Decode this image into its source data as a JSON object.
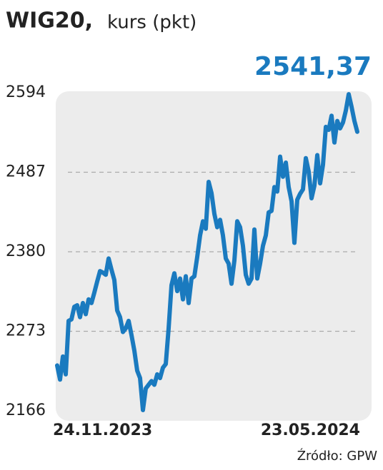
{
  "chart_data": {
    "type": "line",
    "title": "WIG20,",
    "subtitle": "kurs (pkt)",
    "annotation": "2541,37",
    "source": "Źródło: GPW",
    "color": "#1a7abf",
    "ylim": [
      2166,
      2594
    ],
    "yticks": [
      2166,
      2273,
      2380,
      2487,
      2594
    ],
    "grid": true,
    "categories": [
      "24.11.2023",
      null,
      null,
      null,
      null,
      null,
      null,
      null,
      null,
      null,
      null,
      null,
      null,
      null,
      null,
      null,
      null,
      null,
      null,
      null,
      null,
      null,
      null,
      null,
      null,
      null,
      null,
      null,
      null,
      null,
      null,
      null,
      null,
      null,
      null,
      null,
      null,
      null,
      null,
      null,
      null,
      null,
      null,
      null,
      null,
      null,
      null,
      null,
      null,
      null,
      null,
      null,
      null,
      null,
      null,
      null,
      null,
      null,
      null,
      null,
      null,
      null,
      null,
      null,
      null,
      null,
      null,
      null,
      null,
      null,
      null,
      null,
      null,
      null,
      null,
      null,
      null,
      null,
      null,
      null,
      null,
      null,
      null,
      null,
      null,
      null,
      null,
      null,
      null,
      null,
      null,
      null,
      null,
      null,
      null,
      null,
      null,
      null,
      null,
      null,
      null,
      null,
      null,
      null,
      null,
      "23.05.2024"
    ],
    "values": [
      2227,
      2208,
      2239,
      2215,
      2287,
      2289,
      2306,
      2308,
      2292,
      2311,
      2296,
      2316,
      2311,
      2325,
      2340,
      2354,
      2352,
      2349,
      2371,
      2356,
      2342,
      2301,
      2292,
      2272,
      2277,
      2287,
      2268,
      2247,
      2220,
      2210,
      2167,
      2196,
      2201,
      2206,
      2201,
      2215,
      2210,
      2224,
      2229,
      2277,
      2335,
      2351,
      2327,
      2344,
      2316,
      2347,
      2311,
      2344,
      2347,
      2373,
      2402,
      2421,
      2411,
      2474,
      2459,
      2431,
      2413,
      2423,
      2402,
      2371,
      2364,
      2337,
      2368,
      2421,
      2413,
      2388,
      2349,
      2337,
      2344,
      2410,
      2344,
      2364,
      2388,
      2402,
      2433,
      2435,
      2467,
      2461,
      2508,
      2481,
      2500,
      2467,
      2448,
      2392,
      2450,
      2458,
      2464,
      2506,
      2488,
      2452,
      2469,
      2510,
      2472,
      2497,
      2548,
      2544,
      2563,
      2527,
      2556,
      2546,
      2554,
      2570,
      2592,
      2575,
      2556,
      2541.37
    ]
  }
}
